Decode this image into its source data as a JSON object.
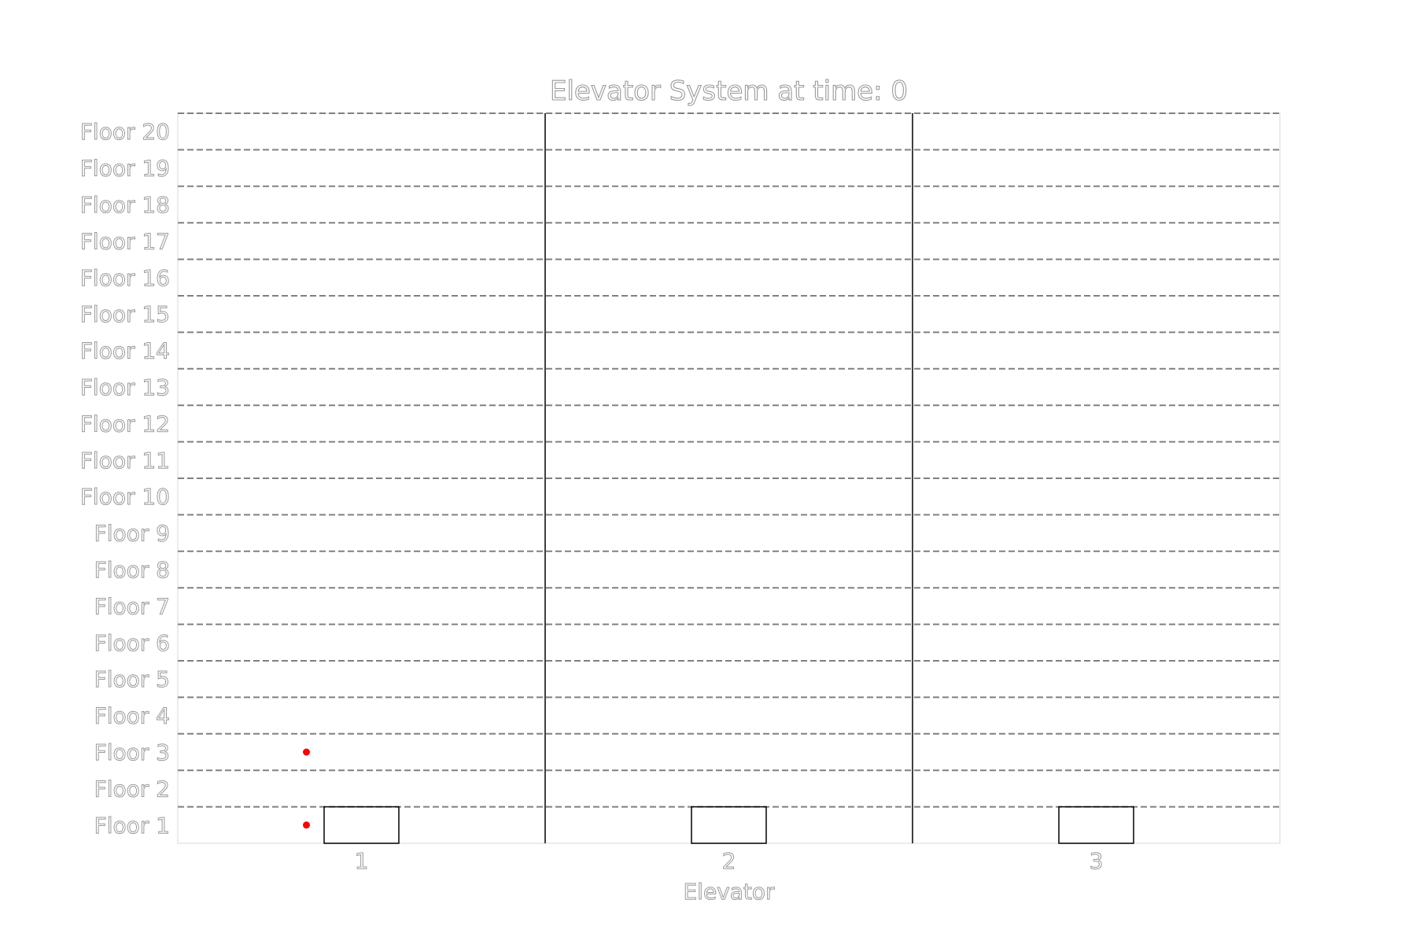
{
  "chart_data": {
    "type": "scatter",
    "title": "Elevator System at time: 0",
    "xlabel": "Elevator",
    "ylabel": "",
    "categories": [
      "1",
      "2",
      "3"
    ],
    "floors": [
      "Floor 1",
      "Floor 2",
      "Floor 3",
      "Floor 4",
      "Floor 5",
      "Floor 6",
      "Floor 7",
      "Floor 8",
      "Floor 9",
      "Floor 10",
      "Floor 11",
      "Floor 12",
      "Floor 13",
      "Floor 14",
      "Floor 15",
      "Floor 16",
      "Floor 17",
      "Floor 18",
      "Floor 19",
      "Floor 20"
    ],
    "elevators": [
      {
        "elevator": 1,
        "floor": 1
      },
      {
        "elevator": 2,
        "floor": 1
      },
      {
        "elevator": 3,
        "floor": 1
      }
    ],
    "waiting_passengers": [
      {
        "elevator": 1,
        "floor": 1
      },
      {
        "elevator": 1,
        "floor": 3
      }
    ],
    "ylim": [
      0.5,
      20.5
    ],
    "grid": "horizontal dashed lines between floors",
    "colors": {
      "passenger": "#ff0000",
      "elevator_box": "#000000",
      "floor_grid": "#808080",
      "shaft_divider": "#000000",
      "text_outline": "#9a9a9a"
    }
  }
}
